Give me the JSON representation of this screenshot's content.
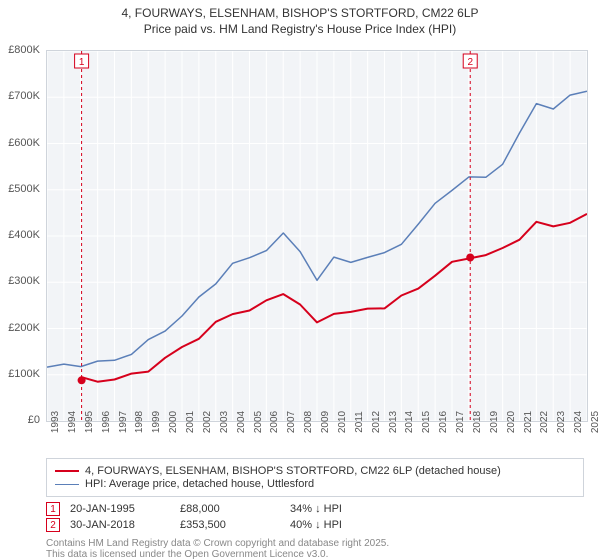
{
  "title_line1": "4, FOURWAYS, ELSENHAM, BISHOP'S STORTFORD, CM22 6LP",
  "title_line2": "Price paid vs. HM Land Registry's House Price Index (HPI)",
  "chart": {
    "type": "line",
    "background_color": "#f2f4f7",
    "border_color": "#cfd4db",
    "grid_color": "#ffffff",
    "ylim": [
      0,
      800000
    ],
    "ytick_step": 100000,
    "y_ticks": [
      "£0",
      "£100K",
      "£200K",
      "£300K",
      "£400K",
      "£500K",
      "£600K",
      "£700K",
      "£800K"
    ],
    "x_years": [
      1993,
      1994,
      1995,
      1996,
      1997,
      1998,
      1999,
      2000,
      2001,
      2002,
      2003,
      2004,
      2005,
      2006,
      2007,
      2008,
      2009,
      2010,
      2011,
      2012,
      2013,
      2014,
      2015,
      2016,
      2017,
      2018,
      2019,
      2020,
      2021,
      2022,
      2023,
      2024,
      2025
    ],
    "series": [
      {
        "label": "4, FOURWAYS, ELSENHAM, BISHOP'S STORTFORD, CM22 6LP (detached house)",
        "color": "#d6001c",
        "line_width": 2,
        "values": [
          null,
          null,
          88000,
          85000,
          90000,
          100000,
          115000,
          135000,
          155000,
          180000,
          210000,
          235000,
          245000,
          255000,
          275000,
          250000,
          210000,
          240000,
          235000,
          240000,
          245000,
          265000,
          290000,
          320000,
          340000,
          353500,
          355000,
          370000,
          400000,
          430000,
          420000,
          430000,
          440000
        ]
      },
      {
        "label": "HPI: Average price, detached house, Uttlesford",
        "color": "#5b7fb8",
        "line_width": 1.5,
        "values": [
          115000,
          118000,
          120000,
          125000,
          135000,
          150000,
          170000,
          195000,
          225000,
          265000,
          305000,
          340000,
          350000,
          370000,
          400000,
          370000,
          310000,
          350000,
          345000,
          350000,
          360000,
          390000,
          425000,
          470000,
          500000,
          520000,
          530000,
          560000,
          620000,
          690000,
          670000,
          700000,
          720000
        ]
      }
    ],
    "markers": [
      {
        "badge": "1",
        "year": 1995.05,
        "value": 88000,
        "color": "#d6001c"
      },
      {
        "badge": "2",
        "year": 2018.08,
        "value": 353500,
        "color": "#d6001c"
      }
    ]
  },
  "legend": {
    "items": [
      {
        "color": "#d6001c",
        "width": 2,
        "label": "4, FOURWAYS, ELSENHAM, BISHOP'S STORTFORD, CM22 6LP (detached house)"
      },
      {
        "color": "#5b7fb8",
        "width": 1.5,
        "label": "HPI: Average price, detached house, Uttlesford"
      }
    ]
  },
  "point_rows": [
    {
      "badge": "1",
      "color": "#d6001c",
      "date": "20-JAN-1995",
      "price": "£88,000",
      "delta": "34% ↓ HPI"
    },
    {
      "badge": "2",
      "color": "#d6001c",
      "date": "30-JAN-2018",
      "price": "£353,500",
      "delta": "40% ↓ HPI"
    }
  ],
  "footnote_line1": "Contains HM Land Registry data © Crown copyright and database right 2025.",
  "footnote_line2": "This data is licensed under the Open Government Licence v3.0."
}
